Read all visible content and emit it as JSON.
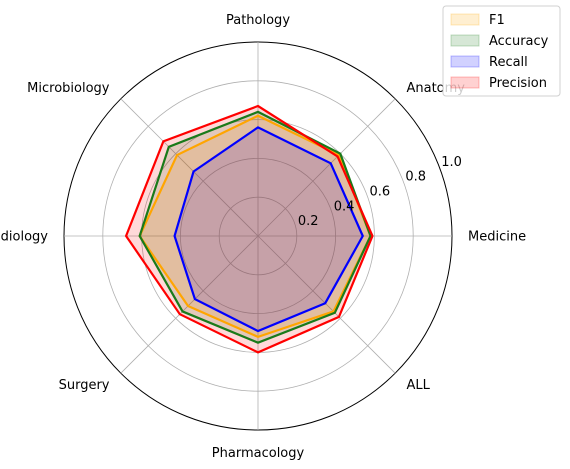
{
  "chart_data": {
    "type": "radar",
    "categories": [
      "Medicine",
      "Anatomy",
      "Pathology",
      "Microbiology",
      "Radiology",
      "Surgery",
      "Pharmacology",
      "ALL"
    ],
    "r_ticks": [
      0.2,
      0.4,
      0.6,
      0.8,
      1.0
    ],
    "r_tick_labels": [
      "0.2",
      "0.4",
      "0.6",
      "0.8",
      "1.0"
    ],
    "rlim": [
      0,
      1.0
    ],
    "grid": true,
    "legend_position": "top-right",
    "series": [
      {
        "name": "F1",
        "values": [
          0.58,
          0.59,
          0.62,
          0.59,
          0.61,
          0.51,
          0.52,
          0.55
        ],
        "color": "#ffa500"
      },
      {
        "name": "Accuracy",
        "values": [
          0.58,
          0.6,
          0.64,
          0.65,
          0.61,
          0.55,
          0.55,
          0.56
        ],
        "color": "#1a7a1a"
      },
      {
        "name": "Recall",
        "values": [
          0.54,
          0.53,
          0.56,
          0.47,
          0.43,
          0.46,
          0.49,
          0.49
        ],
        "color": "#0000ff"
      },
      {
        "name": "Precision",
        "values": [
          0.59,
          0.58,
          0.67,
          0.69,
          0.68,
          0.57,
          0.6,
          0.59
        ],
        "color": "#ff0000"
      }
    ],
    "legend_order": [
      "F1",
      "Accuracy",
      "Recall",
      "Precision"
    ]
  }
}
